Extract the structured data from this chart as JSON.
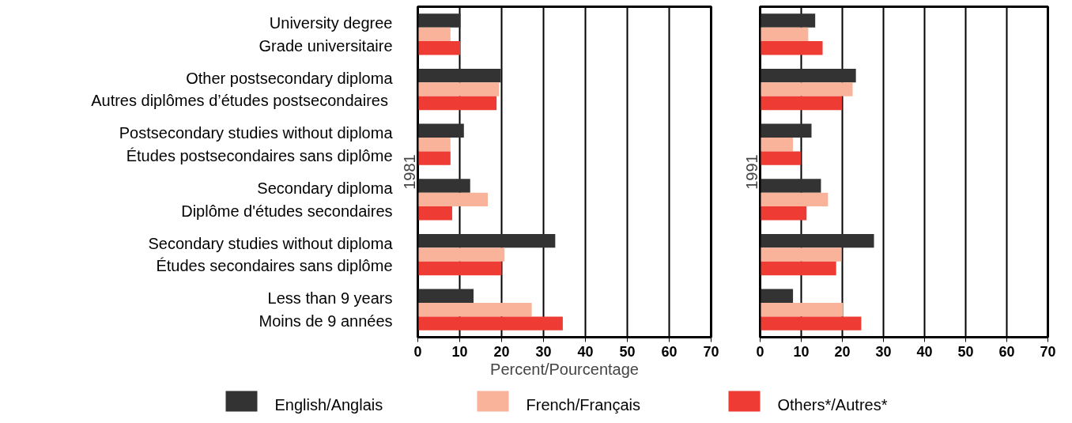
{
  "chart_data": [
    {
      "type": "bar",
      "orientation": "horizontal",
      "ylabel": "1981",
      "xlabel": "Percent/Pourcentage",
      "categories": [
        "University degree\nGrade universitaire",
        "Other postsecondary diploma\nAutres diplômes  d’études postsecondaires",
        "Postsecondary studies without diploma\nÉtudes postsecondaires sans diplôme",
        "Secondary diploma\nDiplôme d'études secondaires",
        "Secondary studies without diploma\nÉtudes secondaires sans diplôme",
        "Less than 9 years\nMoins de 9 années"
      ],
      "series": [
        {
          "name": "English/Anglais",
          "color": "#333333",
          "values": [
            10.2,
            19.8,
            11.0,
            12.5,
            32.8,
            13.3
          ]
        },
        {
          "name": "French/Français",
          "color": "#f9b39b",
          "values": [
            7.8,
            19.4,
            7.8,
            16.7,
            20.7,
            27.2
          ]
        },
        {
          "name": "Others*/Autres*",
          "color": "#ee3b33",
          "values": [
            10.1,
            18.8,
            7.8,
            8.2,
            20.0,
            34.6
          ]
        }
      ],
      "xlim": [
        0,
        70
      ],
      "xticks": [
        0,
        10,
        20,
        30,
        40,
        50,
        60,
        70
      ],
      "grid": "x",
      "legend": "bottom"
    },
    {
      "type": "bar",
      "orientation": "horizontal",
      "ylabel": "1991",
      "categories": [
        null,
        null,
        null,
        null,
        null,
        null
      ],
      "series": [
        {
          "color": "#333333",
          "values": [
            13.4,
            23.3,
            12.5,
            14.8,
            27.7,
            8.0
          ]
        },
        {
          "color": "#f9b39b",
          "values": [
            11.7,
            22.5,
            8.0,
            16.5,
            19.8,
            20.2
          ]
        },
        {
          "color": "#ee3b33",
          "values": [
            15.2,
            19.9,
            9.9,
            11.3,
            18.5,
            24.6
          ]
        }
      ],
      "xlim": [
        0,
        70
      ],
      "xticks": [
        0,
        10,
        20,
        30,
        40,
        50,
        60,
        70
      ],
      "grid": "x",
      "tick_labels": "x"
    }
  ]
}
